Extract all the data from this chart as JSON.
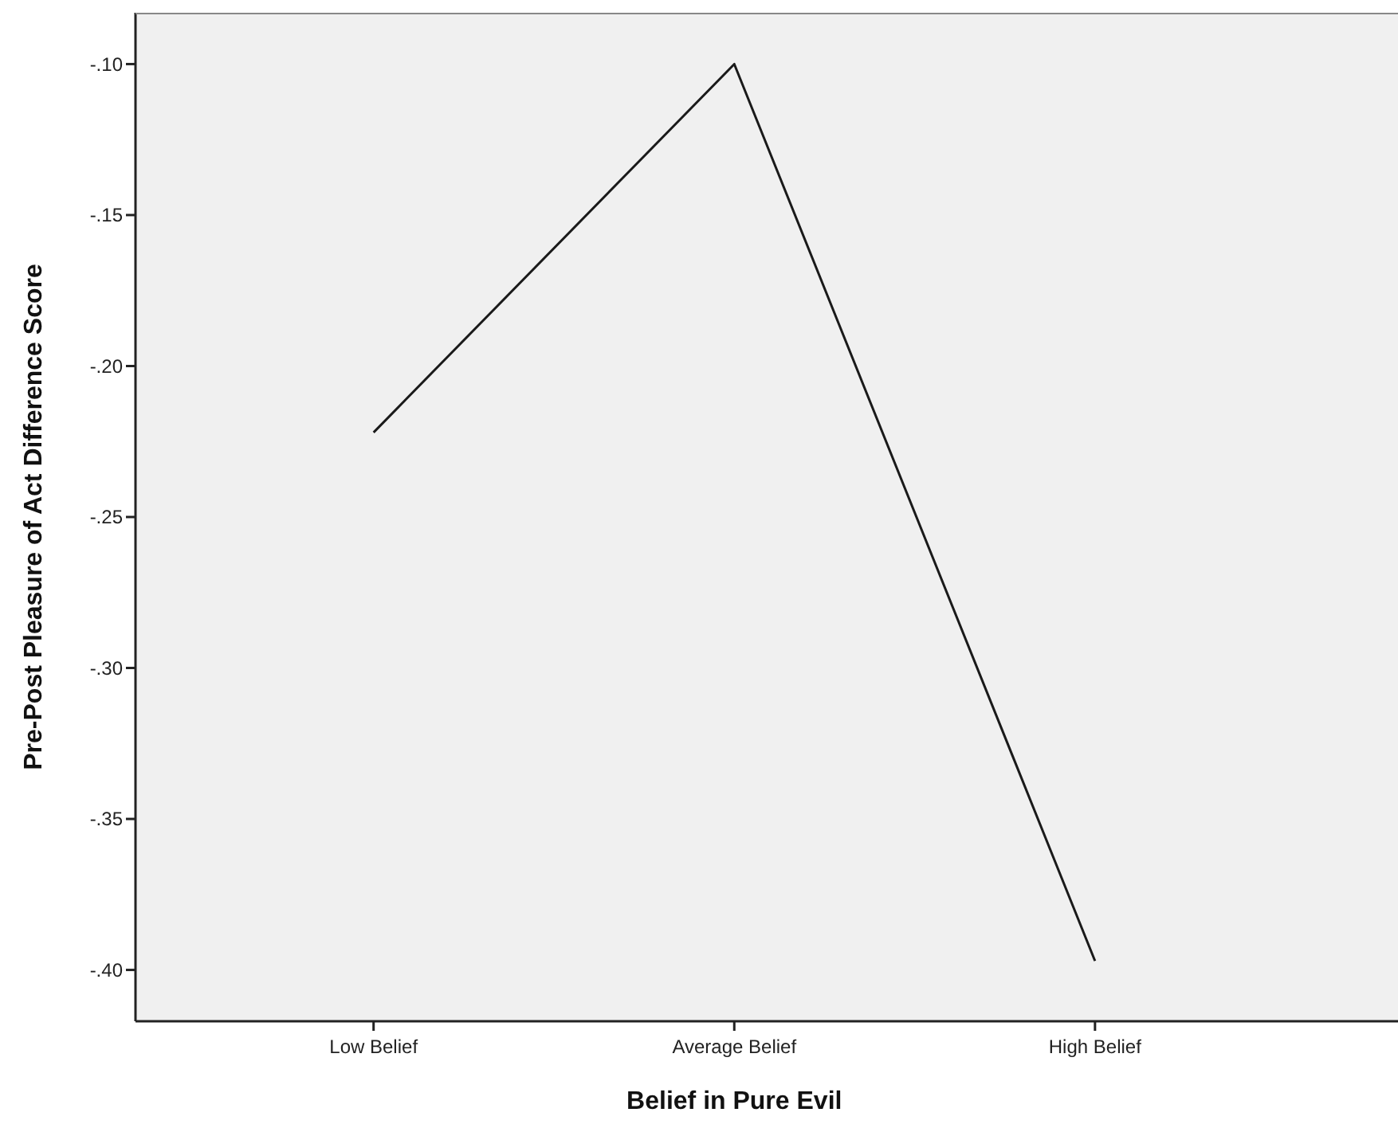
{
  "chart_data": {
    "type": "line",
    "xlabel": "Belief in Pure Evil",
    "ylabel": "Pre-Post Pleasure of Act Difference Score",
    "categories": [
      "Low Belief",
      "Average Belief",
      "High Belief"
    ],
    "series": [
      {
        "color": "#1a1a1a",
        "values": [
          -0.222,
          -0.1,
          -0.397
        ]
      }
    ],
    "ylim": [
      -0.417,
      -0.083
    ],
    "yticks": [
      {
        "value": -0.4,
        "label": "-.40"
      },
      {
        "value": -0.35,
        "label": "-.35"
      },
      {
        "value": -0.3,
        "label": "-.30"
      },
      {
        "value": -0.25,
        "label": "-.25"
      },
      {
        "value": -0.2,
        "label": "-.20"
      },
      {
        "value": -0.15,
        "label": "-.15"
      },
      {
        "value": -0.1,
        "label": "-.10"
      }
    ],
    "grid": false,
    "marker": "none",
    "line_style": "solid"
  }
}
